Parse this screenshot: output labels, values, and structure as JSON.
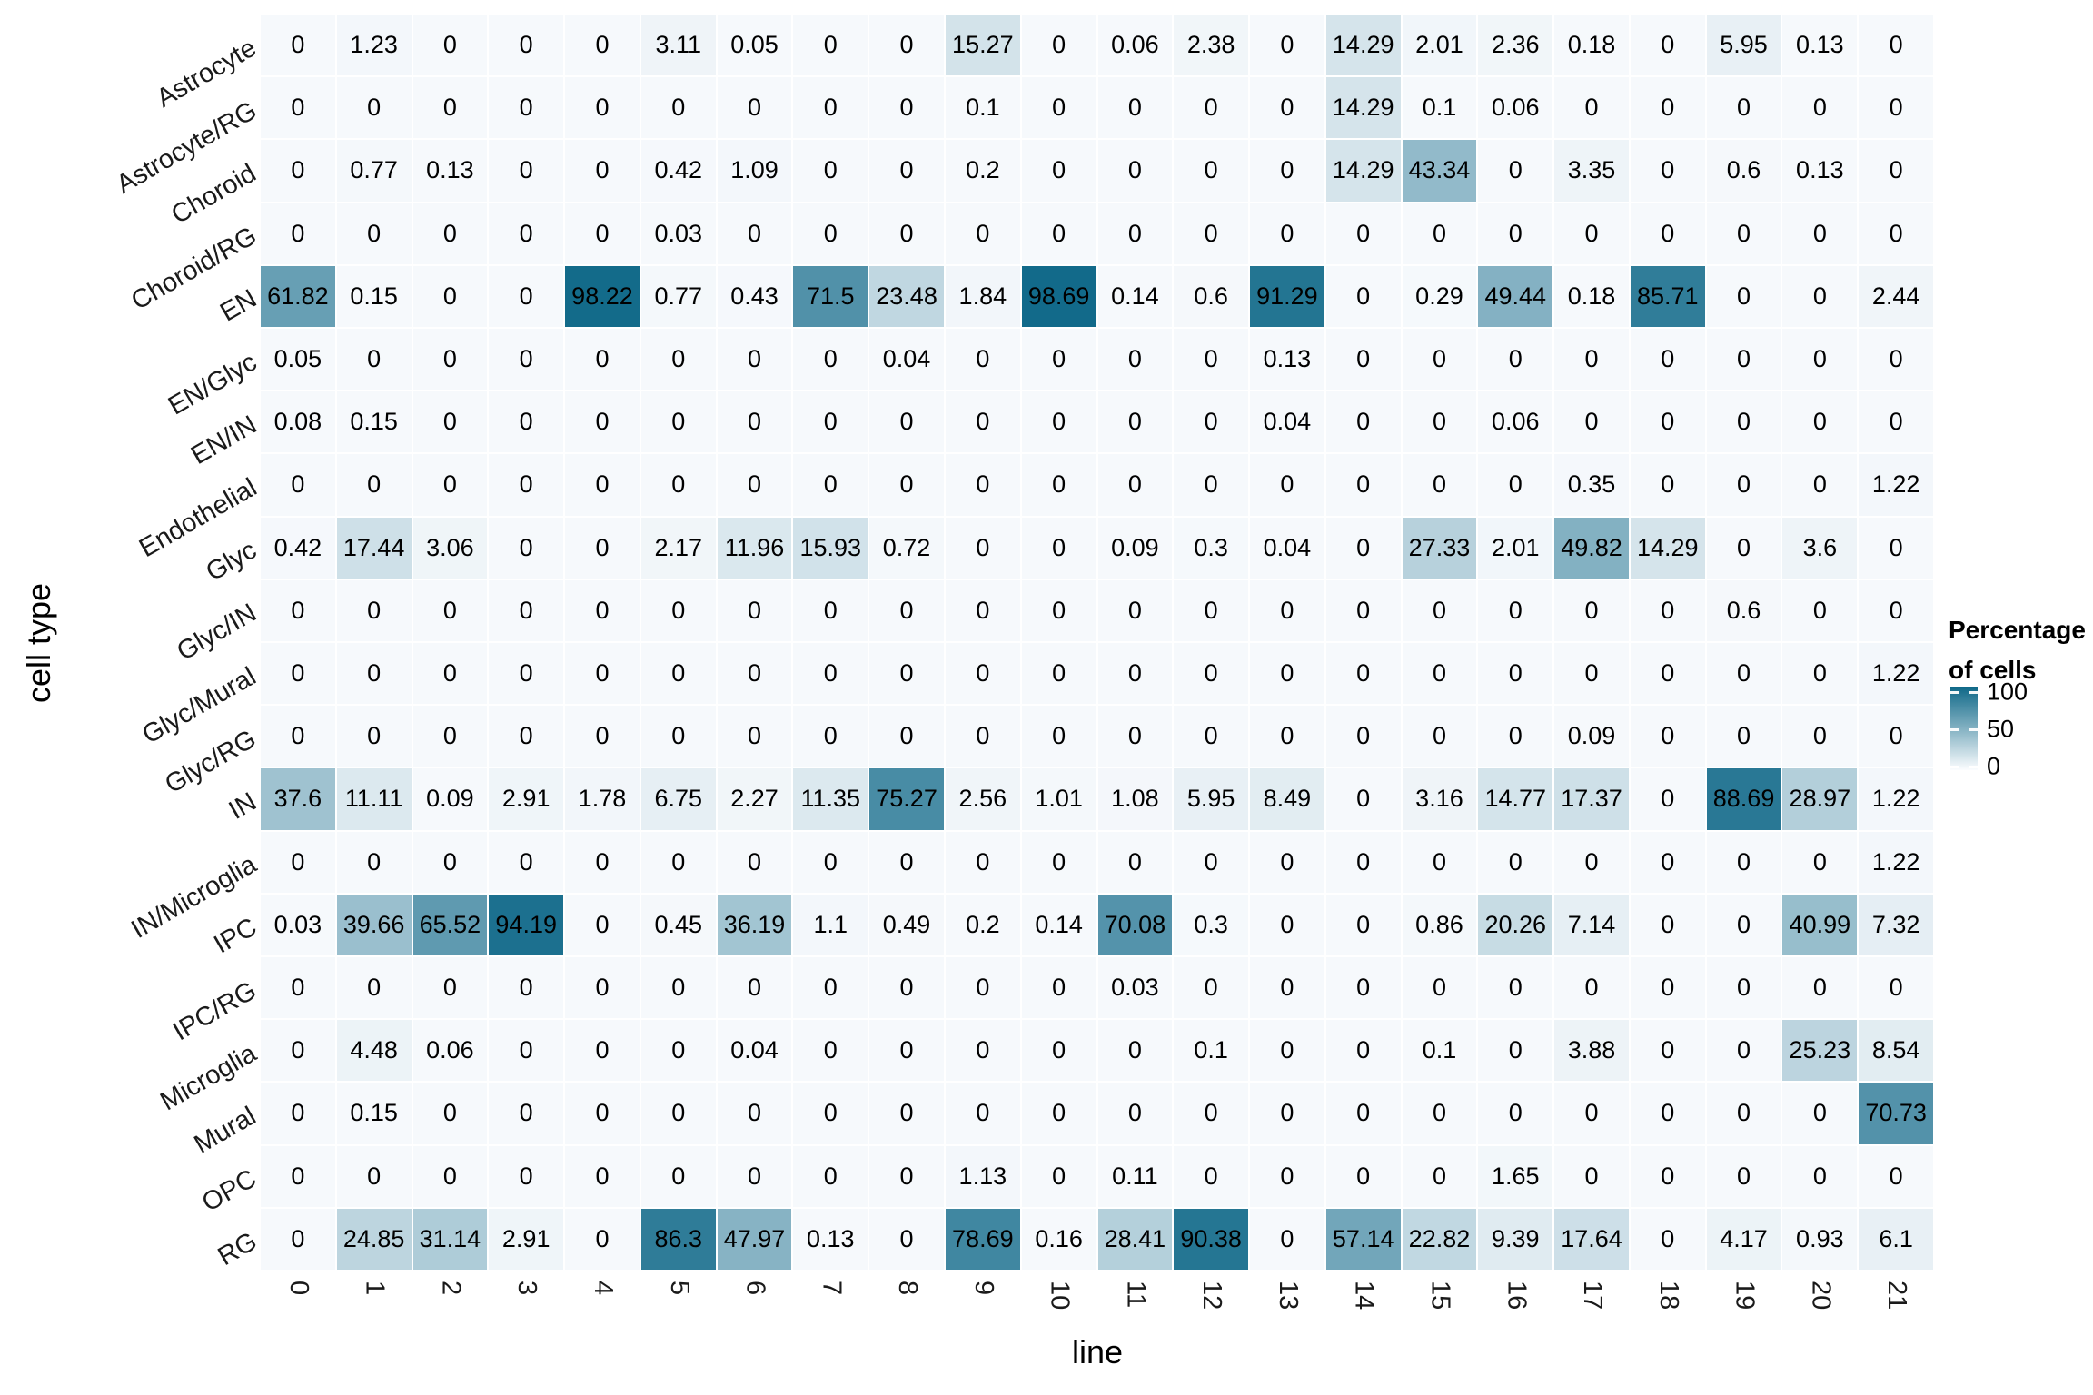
{
  "chart_data": {
    "type": "heatmap",
    "title": "",
    "xlabel": "line",
    "ylabel": "cell type",
    "legend": {
      "title_line1": "Percentage",
      "title_line2": "of cells",
      "ticks": [
        "100",
        "50",
        "0"
      ],
      "tick_values": [
        100,
        50,
        0
      ]
    },
    "colors": {
      "low": "#f6f9fc",
      "high": "#0f6888",
      "value_text": "#000000",
      "axis_text": "#1a1a1a"
    },
    "value_range": [
      0,
      100
    ],
    "grid": false,
    "legend_position": "right",
    "columns": [
      "0",
      "1",
      "2",
      "3",
      "4",
      "5",
      "6",
      "7",
      "8",
      "9",
      "10",
      "11",
      "12",
      "13",
      "14",
      "15",
      "16",
      "17",
      "18",
      "19",
      "20",
      "21"
    ],
    "rows": [
      "Astrocyte",
      "Astrocyte/RG",
      "Choroid",
      "Choroid/RG",
      "EN",
      "EN/Glyc",
      "EN/IN",
      "Endothelial",
      "Glyc",
      "Glyc/IN",
      "Glyc/Mural",
      "Glyc/RG",
      "IN",
      "IN/Microglia",
      "IPC",
      "IPC/RG",
      "Microglia",
      "Mural",
      "OPC",
      "RG"
    ],
    "values": [
      [
        0,
        1.23,
        0,
        0,
        0,
        3.11,
        0.05,
        0,
        0,
        15.27,
        0,
        0.06,
        2.38,
        0,
        14.29,
        2.01,
        2.36,
        0.18,
        0,
        5.95,
        0.13,
        0
      ],
      [
        0,
        0,
        0,
        0,
        0,
        0,
        0,
        0,
        0,
        0.1,
        0,
        0,
        0,
        0,
        14.29,
        0.1,
        0.06,
        0,
        0,
        0,
        0,
        0
      ],
      [
        0,
        0.77,
        0.13,
        0,
        0,
        0.42,
        1.09,
        0,
        0,
        0.2,
        0,
        0,
        0,
        0,
        14.29,
        43.34,
        0,
        3.35,
        0,
        0.6,
        0.13,
        0
      ],
      [
        0,
        0,
        0,
        0,
        0,
        0.03,
        0,
        0,
        0,
        0,
        0,
        0,
        0,
        0,
        0,
        0,
        0,
        0,
        0,
        0,
        0,
        0
      ],
      [
        61.82,
        0.15,
        0,
        0,
        98.22,
        0.77,
        0.43,
        71.5,
        23.48,
        1.84,
        98.69,
        0.14,
        0.6,
        91.29,
        0,
        0.29,
        49.44,
        0.18,
        85.71,
        0,
        0,
        2.44
      ],
      [
        0.05,
        0,
        0,
        0,
        0,
        0,
        0,
        0,
        0.04,
        0,
        0,
        0,
        0,
        0.13,
        0,
        0,
        0,
        0,
        0,
        0,
        0,
        0
      ],
      [
        0.08,
        0.15,
        0,
        0,
        0,
        0,
        0,
        0,
        0,
        0,
        0,
        0,
        0,
        0.04,
        0,
        0,
        0.06,
        0,
        0,
        0,
        0,
        0
      ],
      [
        0,
        0,
        0,
        0,
        0,
        0,
        0,
        0,
        0,
        0,
        0,
        0,
        0,
        0,
        0,
        0,
        0,
        0.35,
        0,
        0,
        0,
        1.22
      ],
      [
        0.42,
        17.44,
        3.06,
        0,
        0,
        2.17,
        11.96,
        15.93,
        0.72,
        0,
        0,
        0.09,
        0.3,
        0.04,
        0,
        27.33,
        2.01,
        49.82,
        14.29,
        0,
        3.6,
        0
      ],
      [
        0,
        0,
        0,
        0,
        0,
        0,
        0,
        0,
        0,
        0,
        0,
        0,
        0,
        0,
        0,
        0,
        0,
        0,
        0,
        0.6,
        0,
        0
      ],
      [
        0,
        0,
        0,
        0,
        0,
        0,
        0,
        0,
        0,
        0,
        0,
        0,
        0,
        0,
        0,
        0,
        0,
        0,
        0,
        0,
        0,
        1.22
      ],
      [
        0,
        0,
        0,
        0,
        0,
        0,
        0,
        0,
        0,
        0,
        0,
        0,
        0,
        0,
        0,
        0,
        0,
        0.09,
        0,
        0,
        0,
        0
      ],
      [
        37.6,
        11.11,
        0.09,
        2.91,
        1.78,
        6.75,
        2.27,
        11.35,
        75.27,
        2.56,
        1.01,
        1.08,
        5.95,
        8.49,
        0,
        3.16,
        14.77,
        17.37,
        0,
        88.69,
        28.97,
        1.22
      ],
      [
        0,
        0,
        0,
        0,
        0,
        0,
        0,
        0,
        0,
        0,
        0,
        0,
        0,
        0,
        0,
        0,
        0,
        0,
        0,
        0,
        0,
        1.22
      ],
      [
        0.03,
        39.66,
        65.52,
        94.19,
        0,
        0.45,
        36.19,
        1.1,
        0.49,
        0.2,
        0.14,
        70.08,
        0.3,
        0,
        0,
        0.86,
        20.26,
        7.14,
        0,
        0,
        40.99,
        7.32
      ],
      [
        0,
        0,
        0,
        0,
        0,
        0,
        0,
        0,
        0,
        0,
        0,
        0.03,
        0,
        0,
        0,
        0,
        0,
        0,
        0,
        0,
        0,
        0
      ],
      [
        0,
        4.48,
        0.06,
        0,
        0,
        0,
        0.04,
        0,
        0,
        0,
        0,
        0,
        0.1,
        0,
        0,
        0.1,
        0,
        3.88,
        0,
        0,
        25.23,
        8.54
      ],
      [
        0,
        0.15,
        0,
        0,
        0,
        0,
        0,
        0,
        0,
        0,
        0,
        0,
        0,
        0,
        0,
        0,
        0,
        0,
        0,
        0,
        0,
        70.73
      ],
      [
        0,
        0,
        0,
        0,
        0,
        0,
        0,
        0,
        0,
        1.13,
        0,
        0.11,
        0,
        0,
        0,
        0,
        1.65,
        0,
        0,
        0,
        0,
        0
      ],
      [
        0,
        24.85,
        31.14,
        2.91,
        0,
        86.3,
        47.97,
        0.13,
        0,
        78.69,
        0.16,
        28.41,
        90.38,
        0,
        57.14,
        22.82,
        9.39,
        17.64,
        0,
        4.17,
        0.93,
        6.1
      ]
    ]
  }
}
